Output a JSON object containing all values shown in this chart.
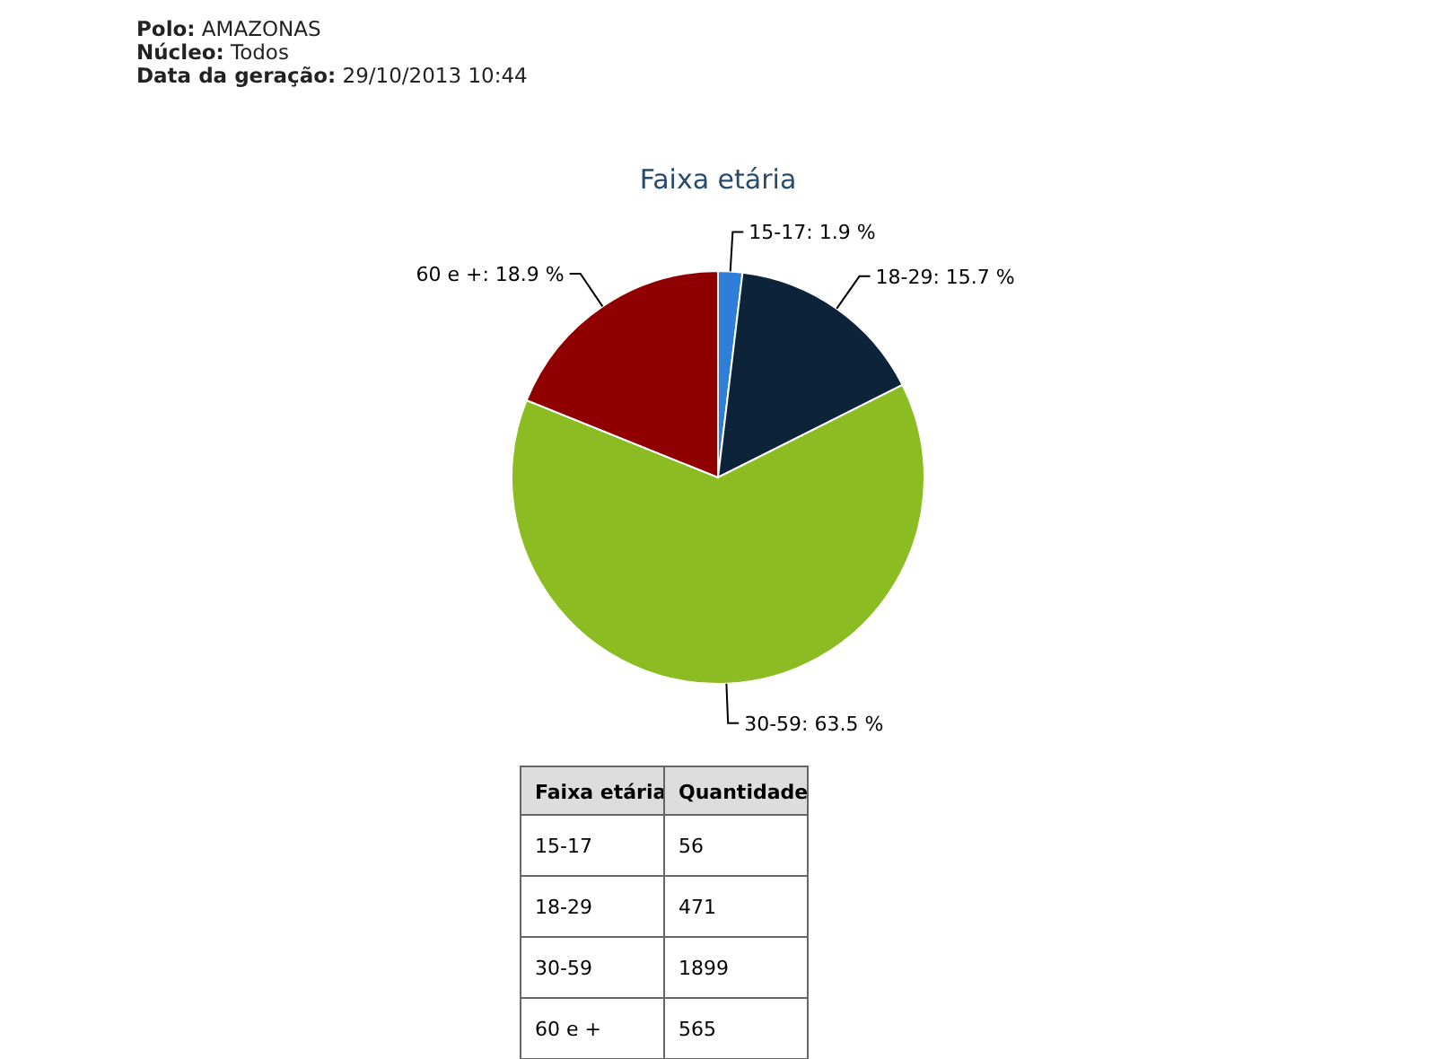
{
  "chart_data": [
    {
      "type": "pie",
      "title": "Faixa etária",
      "categories": [
        "15-17",
        "18-29",
        "30-59",
        "60 e +"
      ],
      "values": [
        1.9,
        15.7,
        63.5,
        18.9
      ],
      "value_labels": [
        ": 1.9 %",
        ": 15.7 %",
        ": 63.5 %",
        ": 18.9 %"
      ],
      "colors": [
        "#2f7ed8",
        "#0d233a",
        "#8bbc21",
        "#910000"
      ],
      "annotations": [
        "Polo: AMAZONAS",
        "Núcleo: Todos",
        "Data da geração: 29/10/2013 10:44"
      ]
    },
    {
      "type": "other",
      "xlabel": "Faixa etária",
      "ylabel": "Quantidade",
      "categories": [
        "15-17",
        "18-29",
        "30-59",
        "60 e +"
      ],
      "values": [
        56,
        471,
        1899,
        565
      ],
      "data_labels": true
    }
  ]
}
